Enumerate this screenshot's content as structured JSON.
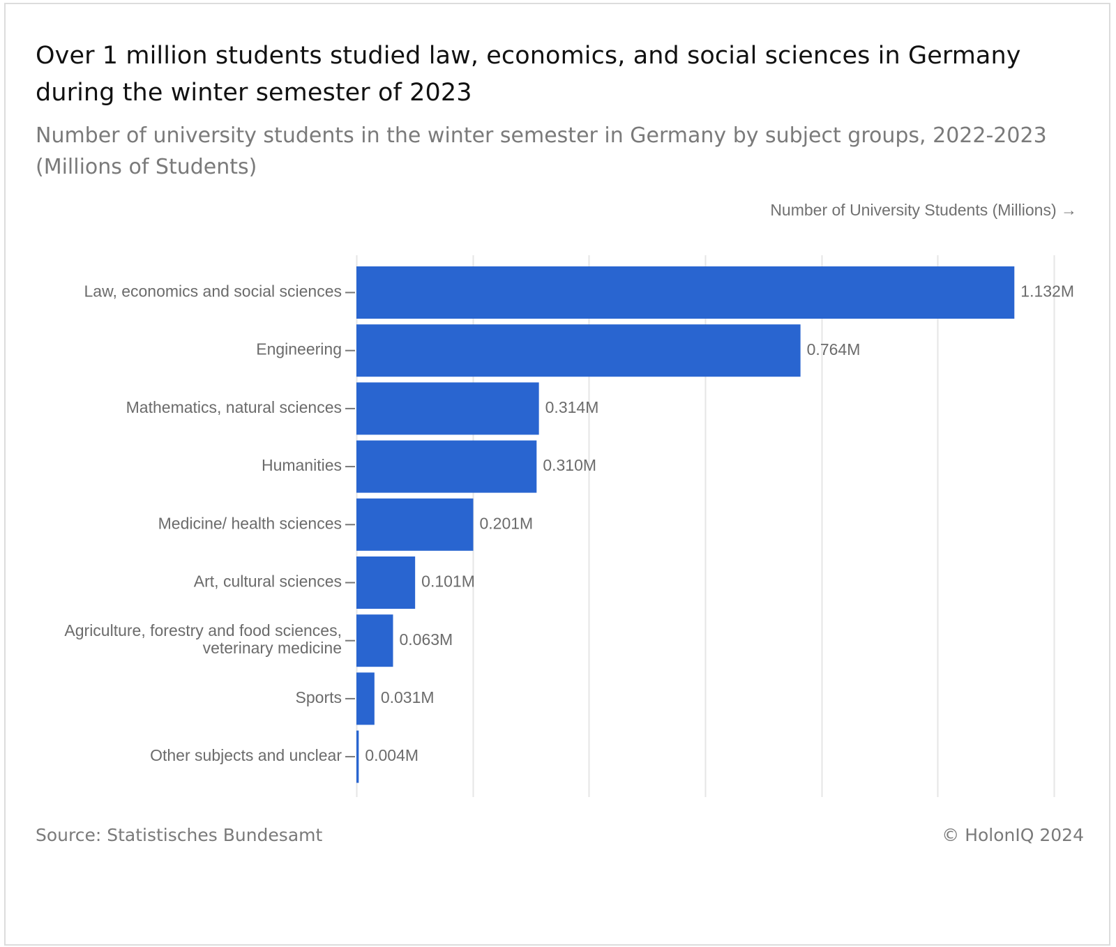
{
  "title": "Over 1 million students studied law, economics, and social sciences in Germany during the winter semester of 2023",
  "subtitle": "Number of university students in the winter semester in Germany by subject groups, 2022-2023 (Millions of Students)",
  "footer": {
    "source": "Source: Statistisches Bundesamt",
    "credit": "© HolonIQ 2024"
  },
  "colors": {
    "bar": "#2965d0",
    "grid": "#e6e6e6",
    "label": "#6b6b6b"
  },
  "chart_data": {
    "type": "bar",
    "orientation": "horizontal",
    "title": "Over 1 million students studied law, economics, and social sciences in Germany during the winter semester of 2023",
    "subtitle": "Number of university students in the winter semester in Germany by subject groups, 2022-2023 (Millions of Students)",
    "xlabel": "Number of University Students (Millions) →",
    "ylabel": "",
    "xlim": [
      0,
      1.2
    ],
    "grid": true,
    "categories": [
      [
        "Law, economics and social sciences"
      ],
      [
        "Engineering"
      ],
      [
        "Mathematics, natural sciences"
      ],
      [
        "Humanities"
      ],
      [
        "Medicine/ health sciences"
      ],
      [
        "Art, cultural sciences"
      ],
      [
        "Agriculture, forestry and food sciences,",
        "veterinary medicine"
      ],
      [
        "Sports"
      ],
      [
        "Other subjects and unclear"
      ]
    ],
    "values": [
      1.132,
      0.764,
      0.314,
      0.31,
      0.201,
      0.101,
      0.063,
      0.031,
      0.004
    ],
    "data_labels": [
      "1.132M",
      "0.764M",
      "0.314M",
      "0.310M",
      "0.201M",
      "0.101M",
      "0.063M",
      "0.031M",
      "0.004M"
    ]
  }
}
